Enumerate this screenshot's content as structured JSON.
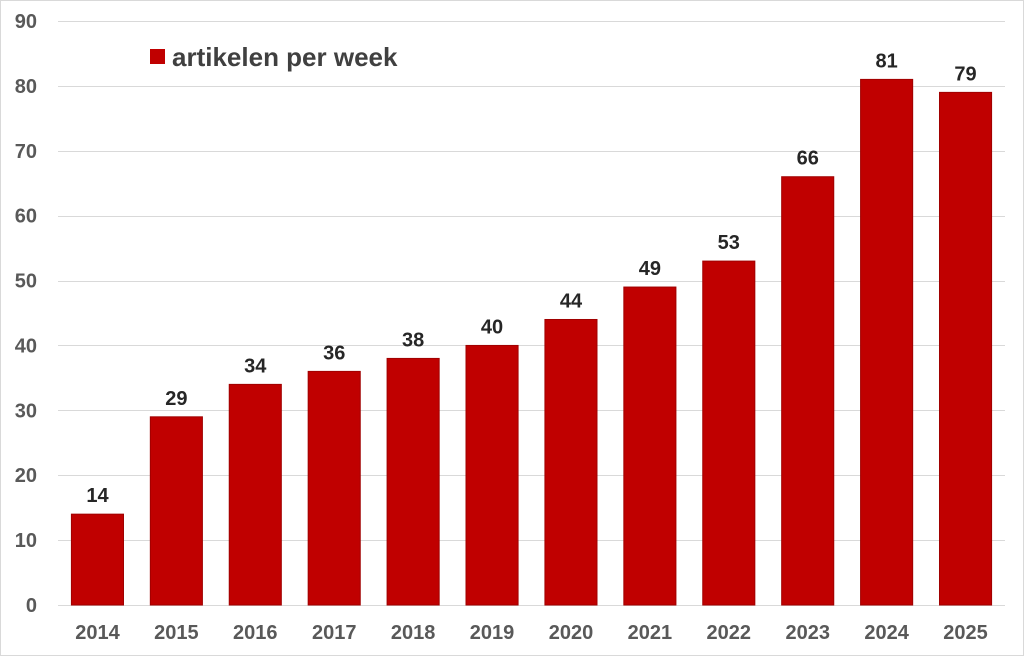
{
  "chart_data": {
    "type": "bar",
    "title": "",
    "xlabel": "",
    "ylabel": "",
    "categories": [
      "2014",
      "2015",
      "2016",
      "2017",
      "2018",
      "2019",
      "2020",
      "2021",
      "2022",
      "2023",
      "2024",
      "2025"
    ],
    "series": [
      {
        "name": "artikelen per week",
        "values": [
          14,
          29,
          34,
          36,
          38,
          40,
          44,
          49,
          53,
          66,
          81,
          79
        ],
        "data_labels": [
          "14",
          "29",
          "34",
          "36",
          "38",
          "40",
          "44",
          "49",
          "53",
          "66",
          "81",
          "79"
        ],
        "color": "#C00000"
      }
    ],
    "ylim": [
      0,
      90
    ],
    "yticks": [
      0,
      10,
      20,
      30,
      40,
      50,
      60,
      70,
      80,
      90
    ],
    "grid": true,
    "gridline_color": "#d9d9d9",
    "legend": {
      "position": "top-left",
      "entries": [
        "artikelen per week"
      ]
    }
  }
}
